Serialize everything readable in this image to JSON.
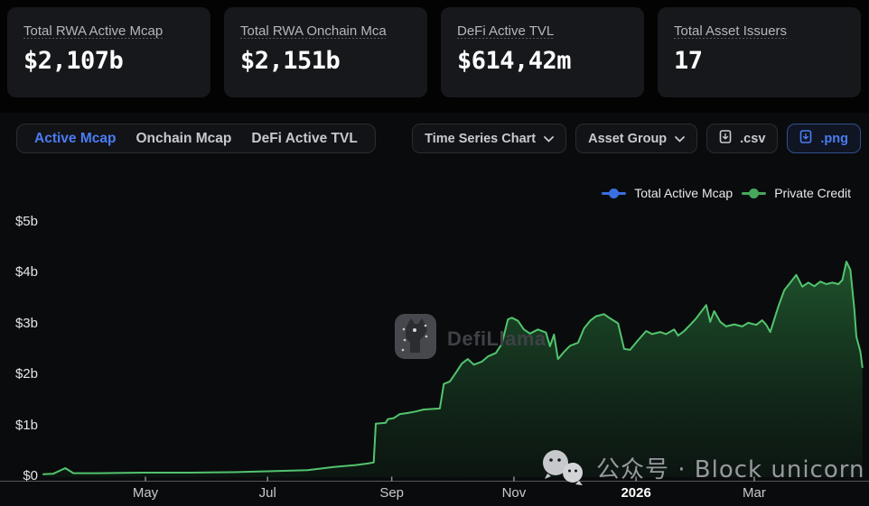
{
  "stats": {
    "cards": [
      {
        "label": "Total RWA Active Mcap",
        "value": "$2,107b"
      },
      {
        "label": "Total RWA Onchain Mca",
        "value": "$2,151b"
      },
      {
        "label": "DeFi Active TVL",
        "value": "$614,42m"
      },
      {
        "label": "Total Asset Issuers",
        "value": "17"
      }
    ]
  },
  "toolbar": {
    "tabs": [
      {
        "label": "Active Mcap",
        "active": true
      },
      {
        "label": "Onchain Mcap",
        "active": false
      },
      {
        "label": "DeFi Active TVL",
        "active": false
      }
    ],
    "dropdowns": [
      {
        "label": "Time Series Chart"
      },
      {
        "label": "Asset Group"
      }
    ],
    "export_buttons": [
      {
        "label": ".csv",
        "accent": false
      },
      {
        "label": ".png",
        "accent": true
      }
    ]
  },
  "legend": [
    {
      "label": "Total Active Mcap",
      "color": "#3a6fe0"
    },
    {
      "label": "Private Credit",
      "color": "#46a75c"
    }
  ],
  "watermarks": {
    "defillama": "DefiLlama",
    "wechat": "公众号 · Block unicorn"
  },
  "colors": {
    "accent_blue": "#4b7cf5",
    "line_green": "#52c46d",
    "background": "#0a0b0d",
    "card_background": "#17181c"
  },
  "chart_data": {
    "type": "area",
    "title": "",
    "xlabel": "",
    "ylabel": "",
    "grid": false,
    "legend_position": "top-right",
    "y_axis": {
      "unit": "USD billions",
      "range": [
        0,
        5.2
      ],
      "ticks": [
        {
          "label": "$5b",
          "value": 5
        },
        {
          "label": "$4b",
          "value": 4
        },
        {
          "label": "$3b",
          "value": 3
        },
        {
          "label": "$2b",
          "value": 2
        },
        {
          "label": "$1b",
          "value": 1
        },
        {
          "label": "$0",
          "value": 0
        }
      ]
    },
    "x_axis": {
      "range": [
        "2025-03-11",
        "2026-04-24"
      ],
      "ticks": [
        {
          "label": "May",
          "date": "2025-05-01",
          "highlight": false
        },
        {
          "label": "Jul",
          "date": "2025-07-01",
          "highlight": false
        },
        {
          "label": "Sep",
          "date": "2025-09-01",
          "highlight": false
        },
        {
          "label": "Nov",
          "date": "2025-11-01",
          "highlight": false
        },
        {
          "label": "2026",
          "date": "2026-01-01",
          "highlight": true
        },
        {
          "label": "Mar",
          "date": "2026-03-01",
          "highlight": false
        }
      ]
    },
    "series": [
      {
        "name": "Total Active Mcap",
        "color": "#3a6fe0",
        "points": []
      },
      {
        "name": "Private Credit",
        "color": "#52c46d",
        "points": [
          [
            "2025-03-11",
            0.04
          ],
          [
            "2025-03-16",
            0.05
          ],
          [
            "2025-03-22",
            0.16
          ],
          [
            "2025-03-26",
            0.06
          ],
          [
            "2025-04-08",
            0.06
          ],
          [
            "2025-04-30",
            0.07
          ],
          [
            "2025-05-23",
            0.07
          ],
          [
            "2025-06-14",
            0.08
          ],
          [
            "2025-07-03",
            0.1
          ],
          [
            "2025-07-21",
            0.12
          ],
          [
            "2025-08-03",
            0.18
          ],
          [
            "2025-08-14",
            0.22
          ],
          [
            "2025-08-20",
            0.25
          ],
          [
            "2025-08-23",
            0.27
          ],
          [
            "2025-08-24",
            1.03
          ],
          [
            "2025-08-29",
            1.05
          ],
          [
            "2025-08-30",
            1.12
          ],
          [
            "2025-09-02",
            1.14
          ],
          [
            "2025-09-05",
            1.22
          ],
          [
            "2025-09-09",
            1.24
          ],
          [
            "2025-09-13",
            1.27
          ],
          [
            "2025-09-17",
            1.31
          ],
          [
            "2025-09-25",
            1.33
          ],
          [
            "2025-09-27",
            1.81
          ],
          [
            "2025-09-30",
            1.86
          ],
          [
            "2025-10-03",
            2.03
          ],
          [
            "2025-10-06",
            2.21
          ],
          [
            "2025-10-09",
            2.3
          ],
          [
            "2025-10-12",
            2.19
          ],
          [
            "2025-10-16",
            2.25
          ],
          [
            "2025-10-19",
            2.35
          ],
          [
            "2025-10-23",
            2.42
          ],
          [
            "2025-10-26",
            2.6
          ],
          [
            "2025-10-29",
            3.08
          ],
          [
            "2025-10-31",
            3.11
          ],
          [
            "2025-11-03",
            3.05
          ],
          [
            "2025-11-06",
            2.88
          ],
          [
            "2025-11-09",
            2.8
          ],
          [
            "2025-11-13",
            2.88
          ],
          [
            "2025-11-17",
            2.82
          ],
          [
            "2025-11-19",
            2.55
          ],
          [
            "2025-11-21",
            2.78
          ],
          [
            "2025-11-23",
            2.3
          ],
          [
            "2025-11-26",
            2.44
          ],
          [
            "2025-11-29",
            2.56
          ],
          [
            "2025-12-03",
            2.62
          ],
          [
            "2025-12-06",
            2.9
          ],
          [
            "2025-12-09",
            3.05
          ],
          [
            "2025-12-12",
            3.14
          ],
          [
            "2025-12-16",
            3.18
          ],
          [
            "2025-12-19",
            3.1
          ],
          [
            "2025-12-23",
            3.0
          ],
          [
            "2025-12-26",
            2.5
          ],
          [
            "2025-12-29",
            2.48
          ],
          [
            "2026-01-02",
            2.67
          ],
          [
            "2026-01-06",
            2.85
          ],
          [
            "2026-01-09",
            2.79
          ],
          [
            "2026-01-13",
            2.83
          ],
          [
            "2026-01-16",
            2.79
          ],
          [
            "2026-01-20",
            2.88
          ],
          [
            "2026-01-22",
            2.76
          ],
          [
            "2026-01-25",
            2.85
          ],
          [
            "2026-01-28",
            2.97
          ],
          [
            "2026-01-31",
            3.1
          ],
          [
            "2026-02-05",
            3.36
          ],
          [
            "2026-02-07",
            3.03
          ],
          [
            "2026-02-09",
            3.24
          ],
          [
            "2026-02-12",
            3.03
          ],
          [
            "2026-02-15",
            2.94
          ],
          [
            "2026-02-19",
            2.98
          ],
          [
            "2026-02-23",
            2.94
          ],
          [
            "2026-02-26",
            3.01
          ],
          [
            "2026-03-02",
            2.97
          ],
          [
            "2026-03-05",
            3.06
          ],
          [
            "2026-03-07",
            2.97
          ],
          [
            "2026-03-09",
            2.83
          ],
          [
            "2026-03-13",
            3.33
          ],
          [
            "2026-03-16",
            3.65
          ],
          [
            "2026-03-19",
            3.8
          ],
          [
            "2026-03-22",
            3.95
          ],
          [
            "2026-03-25",
            3.72
          ],
          [
            "2026-03-28",
            3.8
          ],
          [
            "2026-03-31",
            3.73
          ],
          [
            "2026-04-03",
            3.82
          ],
          [
            "2026-04-06",
            3.77
          ],
          [
            "2026-04-09",
            3.8
          ],
          [
            "2026-04-12",
            3.77
          ],
          [
            "2026-04-14",
            3.85
          ],
          [
            "2026-04-16",
            4.21
          ],
          [
            "2026-04-18",
            4.05
          ],
          [
            "2026-04-20",
            3.27
          ],
          [
            "2026-04-21",
            2.74
          ],
          [
            "2026-04-23",
            2.44
          ],
          [
            "2026-04-24",
            2.14
          ]
        ]
      }
    ]
  }
}
